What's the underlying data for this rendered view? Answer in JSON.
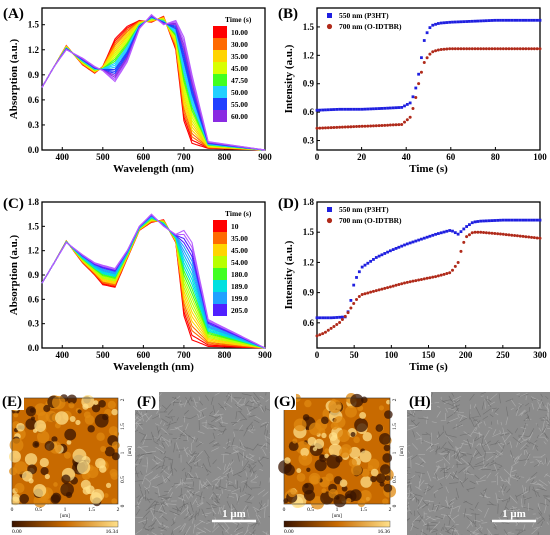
{
  "chart_data": [
    {
      "id": "A",
      "type": "line",
      "panel_label": "(A)",
      "xlabel": "Wavelength (nm)",
      "ylabel": "Absorption (a.u.)",
      "xlim": [
        350,
        900
      ],
      "ylim": [
        0.0,
        1.7
      ],
      "xticks": [
        "400",
        "500",
        "600",
        "700",
        "800",
        "900"
      ],
      "yticks": [
        "0.0",
        "0.3",
        "0.6",
        "0.9",
        "1.2",
        "1.5"
      ],
      "legend_title": "Time (s)",
      "legend_entries": [
        "10.00",
        "30.00",
        "35.00",
        "45.00",
        "47.50",
        "50.00",
        "55.00",
        "60.00"
      ],
      "first_series": {
        "x": [
          350,
          380,
          410,
          450,
          480,
          500,
          530,
          560,
          590,
          620,
          650,
          680,
          700,
          720,
          760,
          900
        ],
        "y": [
          0.75,
          1.0,
          1.25,
          1.02,
          0.92,
          1.0,
          1.33,
          1.48,
          1.55,
          1.53,
          1.6,
          1.2,
          0.35,
          0.08,
          0.02,
          0.0
        ]
      },
      "last_series": {
        "x": [
          350,
          380,
          410,
          450,
          480,
          500,
          530,
          560,
          590,
          620,
          650,
          680,
          700,
          720,
          760,
          900
        ],
        "y": [
          0.75,
          1.0,
          1.2,
          1.1,
          1.0,
          0.95,
          0.82,
          1.05,
          1.45,
          1.62,
          1.5,
          1.55,
          1.35,
          0.9,
          0.1,
          0.0
        ]
      }
    },
    {
      "id": "B",
      "type": "scatter",
      "panel_label": "(B)",
      "xlabel": "Time (s)",
      "ylabel": "Intensity (a.u.)",
      "xlim": [
        0,
        100
      ],
      "ylim": [
        0.2,
        1.7
      ],
      "xticks": [
        "0",
        "20",
        "40",
        "60",
        "80",
        "100"
      ],
      "yticks": [
        "0.3",
        "0.6",
        "0.9",
        "1.2",
        "1.5"
      ],
      "series": [
        {
          "name": "550 nm (P3HT)",
          "color": "#1f1fe0",
          "x": [
            0,
            10,
            20,
            30,
            38,
            42,
            44,
            46,
            48,
            50,
            52,
            55,
            60,
            70,
            80,
            90,
            100
          ],
          "y": [
            0.62,
            0.63,
            0.63,
            0.64,
            0.65,
            0.7,
            0.82,
            1.05,
            1.35,
            1.48,
            1.52,
            1.54,
            1.55,
            1.56,
            1.57,
            1.57,
            1.57
          ]
        },
        {
          "name": "700 nm (O-IDTBR)",
          "color": "#b02a1a",
          "x": [
            0,
            10,
            20,
            30,
            38,
            42,
            44,
            46,
            48,
            50,
            52,
            55,
            60,
            70,
            80,
            90,
            100
          ],
          "y": [
            0.43,
            0.44,
            0.45,
            0.46,
            0.47,
            0.55,
            0.72,
            0.95,
            1.12,
            1.2,
            1.24,
            1.26,
            1.27,
            1.27,
            1.27,
            1.27,
            1.27
          ]
        }
      ]
    },
    {
      "id": "C",
      "type": "line",
      "panel_label": "(C)",
      "xlabel": "Wavelength (nm)",
      "ylabel": "Absorption (a.u.)",
      "xlim": [
        350,
        900
      ],
      "ylim": [
        0.0,
        1.8
      ],
      "xticks": [
        "400",
        "500",
        "600",
        "700",
        "800",
        "900"
      ],
      "yticks": [
        "0.0",
        "0.3",
        "0.6",
        "0.9",
        "1.2",
        "1.5",
        "1.8"
      ],
      "legend_title": "Time (s)",
      "legend_entries": [
        "10",
        "35.00",
        "45.00",
        "54.00",
        "180.0",
        "189.0",
        "199.0",
        "205.0"
      ],
      "first_series": {
        "x": [
          350,
          380,
          410,
          450,
          480,
          500,
          530,
          560,
          590,
          620,
          650,
          680,
          700,
          720,
          760,
          900
        ],
        "y": [
          0.8,
          1.05,
          1.32,
          1.05,
          0.9,
          0.78,
          0.75,
          1.1,
          1.45,
          1.55,
          1.58,
          1.3,
          0.4,
          0.1,
          0.02,
          0.0
        ]
      },
      "last_series": {
        "x": [
          350,
          380,
          410,
          450,
          480,
          500,
          530,
          560,
          590,
          620,
          650,
          680,
          700,
          720,
          760,
          900
        ],
        "y": [
          0.8,
          1.05,
          1.3,
          1.15,
          1.05,
          1.02,
          0.98,
          1.2,
          1.5,
          1.65,
          1.5,
          1.4,
          1.45,
          1.3,
          0.35,
          0.0
        ]
      }
    },
    {
      "id": "D",
      "type": "scatter",
      "panel_label": "(D)",
      "xlabel": "Time (s)",
      "ylabel": "Intensity (a.u.)",
      "xlim": [
        0,
        300
      ],
      "ylim": [
        0.35,
        1.8
      ],
      "xticks": [
        "0",
        "50",
        "100",
        "150",
        "200",
        "250",
        "300"
      ],
      "yticks": [
        "0.6",
        "0.9",
        "1.2",
        "1.5",
        "1.8"
      ],
      "series": [
        {
          "name": "550 nm (P3HT)",
          "color": "#1f1fe0",
          "x": [
            0,
            20,
            40,
            45,
            50,
            55,
            60,
            70,
            80,
            100,
            120,
            140,
            160,
            180,
            190,
            200,
            210,
            220,
            250,
            300
          ],
          "y": [
            0.65,
            0.65,
            0.66,
            0.8,
            1.0,
            1.08,
            1.15,
            1.2,
            1.25,
            1.32,
            1.38,
            1.43,
            1.48,
            1.52,
            1.48,
            1.55,
            1.6,
            1.61,
            1.62,
            1.62
          ]
        },
        {
          "name": "700 nm (O-IDTBR)",
          "color": "#b02a1a",
          "x": [
            0,
            10,
            20,
            30,
            40,
            50,
            55,
            60,
            70,
            80,
            100,
            120,
            140,
            160,
            180,
            190,
            195,
            200,
            210,
            220,
            250,
            300
          ],
          "y": [
            0.47,
            0.5,
            0.55,
            0.6,
            0.68,
            0.8,
            0.85,
            0.88,
            0.9,
            0.92,
            0.96,
            1.0,
            1.03,
            1.06,
            1.1,
            1.2,
            1.35,
            1.45,
            1.5,
            1.5,
            1.48,
            1.44
          ]
        }
      ]
    }
  ],
  "afm_E": {
    "label": "(E)",
    "xticks": [
      "0",
      "0.5",
      "1",
      "1.5",
      "2"
    ],
    "yticks": [
      "0",
      "0.5",
      "1",
      "1.5",
      "2"
    ],
    "axis_unit": "[um]",
    "scale_min": "0.00",
    "scale_max": "16.34",
    "scale_unit": "[nm]"
  },
  "tem_F": {
    "label": "(F)",
    "scalebar": "1 μm"
  },
  "afm_G": {
    "label": "(G)",
    "xticks": [
      "0",
      "0.5",
      "1",
      "1.5",
      "2"
    ],
    "yticks": [
      "0",
      "0.5",
      "1",
      "1.5",
      "2"
    ],
    "axis_unit": "[um]",
    "scale_min": "0.00",
    "scale_max": "16.36",
    "scale_unit": "[nm]"
  },
  "tem_H": {
    "label": "(H)",
    "scalebar": "1 μm"
  },
  "colors": {
    "spectrum_A": [
      "#ff0000",
      "#ff6a00",
      "#ffd400",
      "#d8ff00",
      "#40ff20",
      "#20d0ff",
      "#2040ff",
      "#8a2be2",
      "#b65cff"
    ],
    "spectrum_C": [
      "#ff0000",
      "#ff6a00",
      "#ffd400",
      "#b8ff00",
      "#40ff20",
      "#00e0e0",
      "#20a0ff",
      "#5020ff",
      "#b65cff"
    ],
    "afm_dark": "#3a1400",
    "afm_mid": "#c86a00",
    "afm_light": "#ffe08a"
  }
}
